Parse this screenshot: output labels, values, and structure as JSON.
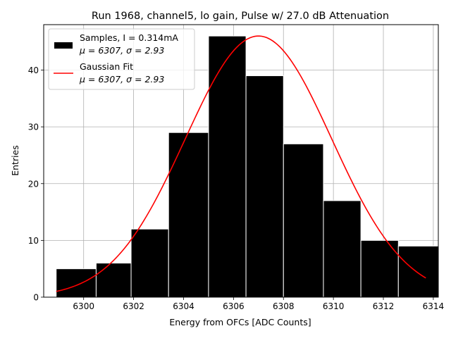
{
  "chart_data": {
    "type": "bar",
    "title": "Run 1968, channel5, lo gain, Pulse w/ 27.0 dB Attenuation",
    "xlabel": "Energy from OFCs [ADC Counts]",
    "ylabel": "Entries",
    "xlim": [
      6298.4,
      6314.2
    ],
    "ylim": [
      0,
      48
    ],
    "xticks": [
      6300,
      6302,
      6304,
      6306,
      6308,
      6310,
      6312,
      6314
    ],
    "yticks": [
      0,
      10,
      20,
      30,
      40
    ],
    "grid": true,
    "legend_position": "top-left",
    "bins": [
      {
        "x0": 6298.9,
        "x1": 6300.5,
        "value": 5
      },
      {
        "x0": 6300.5,
        "x1": 6301.9,
        "value": 6
      },
      {
        "x0": 6301.9,
        "x1": 6303.4,
        "value": 12
      },
      {
        "x0": 6303.4,
        "x1": 6305.0,
        "value": 29
      },
      {
        "x0": 6305.0,
        "x1": 6306.5,
        "value": 46
      },
      {
        "x0": 6306.5,
        "x1": 6308.0,
        "value": 39
      },
      {
        "x0": 6308.0,
        "x1": 6309.6,
        "value": 27
      },
      {
        "x0": 6309.6,
        "x1": 6311.1,
        "value": 17
      },
      {
        "x0": 6311.1,
        "x1": 6312.6,
        "value": 10
      },
      {
        "x0": 6312.6,
        "x1": 6314.2,
        "value": 9
      }
    ],
    "fit": {
      "type": "gaussian",
      "amplitude": 46,
      "mu": 6307.0,
      "sigma": 2.93,
      "x_range": [
        6298.9,
        6313.7
      ]
    },
    "series": [
      {
        "name": "Samples, I = 0.314mA",
        "stats": "μ = 6307, σ = 2.93",
        "color": "#000000",
        "style": "bar"
      },
      {
        "name": "Gaussian Fit",
        "stats": "μ = 6307, σ = 2.93",
        "color": "#ff0000",
        "style": "line"
      }
    ]
  }
}
